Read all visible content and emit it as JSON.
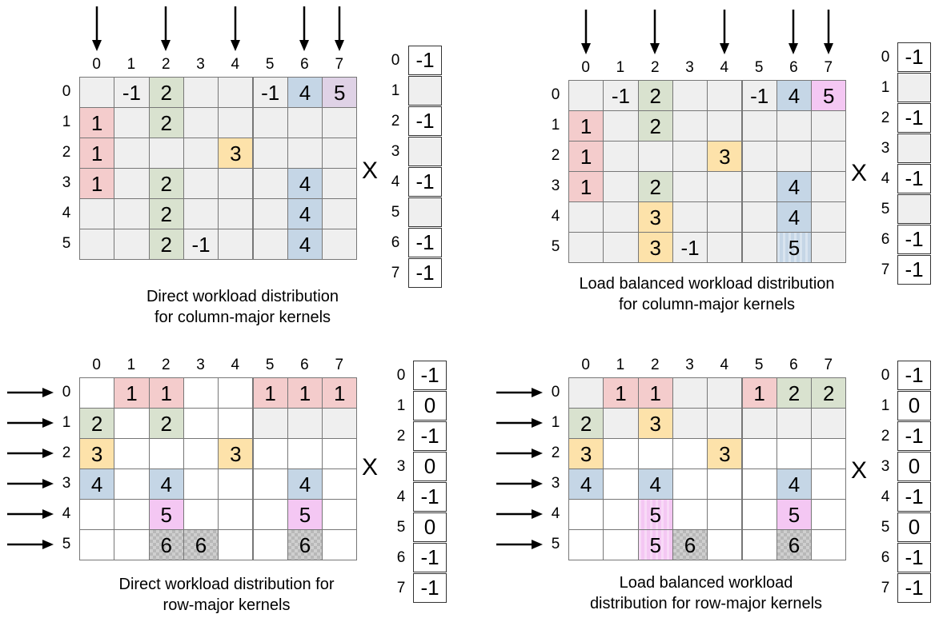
{
  "times_symbol": "X",
  "colors": {
    "grey": "#efefef",
    "white": "#ffffff",
    "pink": "#f4cccc",
    "green": "#d9e2cf",
    "orange": "#fde2aa",
    "blue": "#c5d6e6",
    "magenta": "#f4c7f3",
    "lavender": "#dfd2e6"
  },
  "panels": [
    {
      "id": "direct-column",
      "caption": [
        "Direct workload distribution",
        "for column-major kernels"
      ],
      "col_labels": [
        "0",
        "1",
        "2",
        "3",
        "4",
        "5",
        "6",
        "7"
      ],
      "row_labels": [
        "0",
        "1",
        "2",
        "3",
        "4",
        "5"
      ],
      "arrows": "top",
      "arrow_targets": [
        0,
        2,
        4,
        6,
        7
      ],
      "cells": [
        [
          [
            "",
            "grey"
          ],
          [
            "-1",
            "grey"
          ],
          [
            "2",
            "green"
          ],
          [
            "",
            "grey"
          ],
          [
            "",
            "grey"
          ],
          [
            "-1",
            "grey"
          ],
          [
            "4",
            "blue"
          ],
          [
            "5",
            "lavender"
          ]
        ],
        [
          [
            "1",
            "pink"
          ],
          [
            "",
            "grey"
          ],
          [
            "2",
            "green"
          ],
          [
            "",
            "grey"
          ],
          [
            "",
            "grey"
          ],
          [
            "",
            "grey"
          ],
          [
            "",
            "grey"
          ],
          [
            "",
            "grey"
          ]
        ],
        [
          [
            "1",
            "pink"
          ],
          [
            "",
            "grey"
          ],
          [
            "",
            "grey"
          ],
          [
            "",
            "grey"
          ],
          [
            "3",
            "orange"
          ],
          [
            "",
            "grey"
          ],
          [
            "",
            "grey"
          ],
          [
            "",
            "grey"
          ]
        ],
        [
          [
            "1",
            "pink"
          ],
          [
            "",
            "grey"
          ],
          [
            "2",
            "green"
          ],
          [
            "",
            "grey"
          ],
          [
            "",
            "grey"
          ],
          [
            "",
            "grey"
          ],
          [
            "4",
            "blue"
          ],
          [
            "",
            "grey"
          ]
        ],
        [
          [
            "",
            "grey"
          ],
          [
            "",
            "grey"
          ],
          [
            "2",
            "green"
          ],
          [
            "",
            "grey"
          ],
          [
            "",
            "grey"
          ],
          [
            "",
            "grey"
          ],
          [
            "4",
            "blue"
          ],
          [
            "",
            "grey"
          ]
        ],
        [
          [
            "",
            "grey"
          ],
          [
            "",
            "grey"
          ],
          [
            "2",
            "green"
          ],
          [
            "-1",
            "grey"
          ],
          [
            "",
            "grey"
          ],
          [
            "",
            "grey"
          ],
          [
            "4",
            "blue"
          ],
          [
            "",
            "grey"
          ]
        ]
      ],
      "vector": {
        "labels": [
          "0",
          "1",
          "2",
          "3",
          "4",
          "5",
          "6",
          "7"
        ],
        "values": [
          [
            "-1",
            "white"
          ],
          [
            "",
            "grey"
          ],
          [
            "-1",
            "white"
          ],
          [
            "",
            "grey"
          ],
          [
            "-1",
            "white"
          ],
          [
            "",
            "grey"
          ],
          [
            "-1",
            "white"
          ],
          [
            "-1",
            "white"
          ]
        ]
      }
    },
    {
      "id": "balanced-column",
      "caption": [
        "Load balanced workload distribution",
        "for column-major kernels"
      ],
      "col_labels": [
        "0",
        "1",
        "2",
        "3",
        "4",
        "5",
        "6",
        "7"
      ],
      "row_labels": [
        "0",
        "1",
        "2",
        "3",
        "4",
        "5"
      ],
      "arrows": "top",
      "arrow_targets": [
        0,
        2,
        4,
        6,
        7
      ],
      "cells": [
        [
          [
            "",
            "grey"
          ],
          [
            "-1",
            "grey"
          ],
          [
            "2",
            "green"
          ],
          [
            "",
            "grey"
          ],
          [
            "",
            "grey"
          ],
          [
            "-1",
            "grey"
          ],
          [
            "4",
            "blue"
          ],
          [
            "5",
            "magenta"
          ]
        ],
        [
          [
            "1",
            "pink"
          ],
          [
            "",
            "grey"
          ],
          [
            "2",
            "green"
          ],
          [
            "",
            "grey"
          ],
          [
            "",
            "grey"
          ],
          [
            "",
            "grey"
          ],
          [
            "",
            "grey"
          ],
          [
            "",
            "grey"
          ]
        ],
        [
          [
            "1",
            "pink"
          ],
          [
            "",
            "grey"
          ],
          [
            "",
            "grey"
          ],
          [
            "",
            "grey"
          ],
          [
            "3",
            "orange"
          ],
          [
            "",
            "grey"
          ],
          [
            "",
            "grey"
          ],
          [
            "",
            "grey"
          ]
        ],
        [
          [
            "1",
            "pink"
          ],
          [
            "",
            "grey"
          ],
          [
            "2",
            "green"
          ],
          [
            "",
            "grey"
          ],
          [
            "",
            "grey"
          ],
          [
            "",
            "grey"
          ],
          [
            "4",
            "blue"
          ],
          [
            "",
            "grey"
          ]
        ],
        [
          [
            "",
            "grey"
          ],
          [
            "",
            "grey"
          ],
          [
            "3",
            "orange"
          ],
          [
            "",
            "grey"
          ],
          [
            "",
            "grey"
          ],
          [
            "",
            "grey"
          ],
          [
            "4",
            "blue"
          ],
          [
            "",
            "grey"
          ]
        ],
        [
          [
            "",
            "grey"
          ],
          [
            "",
            "grey"
          ],
          [
            "3",
            "orange"
          ],
          [
            "-1",
            "grey"
          ],
          [
            "",
            "grey"
          ],
          [
            "",
            "grey"
          ],
          [
            "5",
            "stripeb"
          ],
          [
            "",
            "grey"
          ]
        ]
      ],
      "vector": {
        "labels": [
          "0",
          "1",
          "2",
          "3",
          "4",
          "5",
          "6",
          "7"
        ],
        "values": [
          [
            "-1",
            "white"
          ],
          [
            "",
            "grey"
          ],
          [
            "-1",
            "white"
          ],
          [
            "",
            "grey"
          ],
          [
            "-1",
            "white"
          ],
          [
            "",
            "grey"
          ],
          [
            "-1",
            "white"
          ],
          [
            "-1",
            "white"
          ]
        ]
      }
    },
    {
      "id": "direct-row",
      "caption": [
        "Direct workload distribution for",
        "row-major kernels"
      ],
      "col_labels": [
        "0",
        "1",
        "2",
        "3",
        "4",
        "5",
        "6",
        "7"
      ],
      "row_labels": [
        "0",
        "1",
        "2",
        "3",
        "4",
        "5"
      ],
      "arrows": "left",
      "arrow_targets": [
        0,
        1,
        2,
        3,
        4,
        5
      ],
      "cells": [
        [
          [
            "",
            "white"
          ],
          [
            "1",
            "pink"
          ],
          [
            "1",
            "pink"
          ],
          [
            "",
            "white"
          ],
          [
            "",
            "white"
          ],
          [
            "1",
            "pink"
          ],
          [
            "1",
            "pink"
          ],
          [
            "1",
            "pink"
          ]
        ],
        [
          [
            "2",
            "green"
          ],
          [
            "",
            "white"
          ],
          [
            "2",
            "green"
          ],
          [
            "",
            "white"
          ],
          [
            "",
            "white"
          ],
          [
            "",
            "grey"
          ],
          [
            "",
            "grey"
          ],
          [
            "",
            "grey"
          ]
        ],
        [
          [
            "3",
            "orange"
          ],
          [
            "",
            "white"
          ],
          [
            "",
            "white"
          ],
          [
            "",
            "white"
          ],
          [
            "3",
            "orange"
          ],
          [
            "",
            "white"
          ],
          [
            "",
            "white"
          ],
          [
            "",
            "white"
          ]
        ],
        [
          [
            "4",
            "blue"
          ],
          [
            "",
            "white"
          ],
          [
            "4",
            "blue"
          ],
          [
            "",
            "white"
          ],
          [
            "",
            "white"
          ],
          [
            "",
            "white"
          ],
          [
            "4",
            "blue"
          ],
          [
            "",
            "white"
          ]
        ],
        [
          [
            "",
            "white"
          ],
          [
            "",
            "white"
          ],
          [
            "5",
            "magenta"
          ],
          [
            "",
            "white"
          ],
          [
            "",
            "white"
          ],
          [
            "",
            "white"
          ],
          [
            "5",
            "magenta"
          ],
          [
            "",
            "white"
          ]
        ],
        [
          [
            "",
            "white"
          ],
          [
            "",
            "white"
          ],
          [
            "6",
            "check"
          ],
          [
            "6",
            "check"
          ],
          [
            "",
            "white"
          ],
          [
            "",
            "white"
          ],
          [
            "6",
            "check"
          ],
          [
            "",
            "white"
          ]
        ]
      ],
      "vector": {
        "labels": [
          "0",
          "1",
          "2",
          "3",
          "4",
          "5",
          "6",
          "7"
        ],
        "values": [
          [
            "-1",
            "white"
          ],
          [
            "0",
            "white"
          ],
          [
            "-1",
            "white"
          ],
          [
            "0",
            "white"
          ],
          [
            "-1",
            "white"
          ],
          [
            "0",
            "white"
          ],
          [
            "-1",
            "white"
          ],
          [
            "-1",
            "white"
          ]
        ]
      }
    },
    {
      "id": "balanced-row",
      "caption": [
        "Load balanced workload",
        "distribution for row-major kernels"
      ],
      "col_labels": [
        "0",
        "1",
        "2",
        "3",
        "4",
        "5",
        "6",
        "7"
      ],
      "row_labels": [
        "0",
        "1",
        "2",
        "3",
        "4",
        "5"
      ],
      "arrows": "left",
      "arrow_targets": [
        0,
        1,
        2,
        3,
        4,
        5
      ],
      "cells": [
        [
          [
            "",
            "grey"
          ],
          [
            "1",
            "pink"
          ],
          [
            "1",
            "pink"
          ],
          [
            "",
            "grey"
          ],
          [
            "",
            "grey"
          ],
          [
            "1",
            "pink"
          ],
          [
            "2",
            "green"
          ],
          [
            "2",
            "green"
          ]
        ],
        [
          [
            "2",
            "green"
          ],
          [
            "",
            "grey"
          ],
          [
            "3",
            "orange"
          ],
          [
            "",
            "grey"
          ],
          [
            "",
            "grey"
          ],
          [
            "",
            "grey"
          ],
          [
            "",
            "grey"
          ],
          [
            "",
            "grey"
          ]
        ],
        [
          [
            "3",
            "orange"
          ],
          [
            "",
            "white"
          ],
          [
            "",
            "white"
          ],
          [
            "",
            "white"
          ],
          [
            "3",
            "orange"
          ],
          [
            "",
            "white"
          ],
          [
            "",
            "white"
          ],
          [
            "",
            "white"
          ]
        ],
        [
          [
            "4",
            "blue"
          ],
          [
            "",
            "white"
          ],
          [
            "4",
            "blue"
          ],
          [
            "",
            "white"
          ],
          [
            "",
            "white"
          ],
          [
            "",
            "white"
          ],
          [
            "4",
            "blue"
          ],
          [
            "",
            "white"
          ]
        ],
        [
          [
            "",
            "white"
          ],
          [
            "",
            "white"
          ],
          [
            "5",
            "stripe"
          ],
          [
            "",
            "white"
          ],
          [
            "",
            "white"
          ],
          [
            "",
            "white"
          ],
          [
            "5",
            "magenta"
          ],
          [
            "",
            "white"
          ]
        ],
        [
          [
            "",
            "white"
          ],
          [
            "",
            "white"
          ],
          [
            "5",
            "stripe"
          ],
          [
            "6",
            "check"
          ],
          [
            "",
            "white"
          ],
          [
            "",
            "white"
          ],
          [
            "6",
            "check"
          ],
          [
            "",
            "white"
          ]
        ]
      ],
      "vector": {
        "labels": [
          "0",
          "1",
          "2",
          "3",
          "4",
          "5",
          "6",
          "7"
        ],
        "values": [
          [
            "-1",
            "white"
          ],
          [
            "0",
            "white"
          ],
          [
            "-1",
            "white"
          ],
          [
            "0",
            "white"
          ],
          [
            "-1",
            "white"
          ],
          [
            "0",
            "white"
          ],
          [
            "-1",
            "white"
          ],
          [
            "-1",
            "white"
          ]
        ]
      }
    }
  ]
}
